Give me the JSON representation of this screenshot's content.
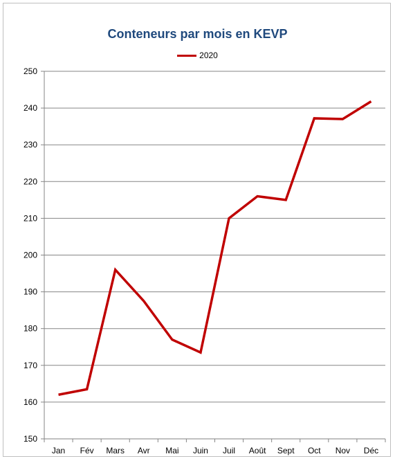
{
  "chart_data": {
    "type": "line",
    "title": "Conteneurs par mois en KEVP",
    "categories": [
      "Jan",
      "Fév",
      "Mars",
      "Avr",
      "Mai",
      "Juin",
      "Juil",
      "Août",
      "Sept",
      "Oct",
      "Nov",
      "Déc"
    ],
    "series": [
      {
        "name": "2020",
        "color": "#c00000",
        "values": [
          162,
          163.5,
          196,
          187.5,
          177,
          173.5,
          210,
          216,
          215,
          237.2,
          237,
          241.8
        ]
      }
    ],
    "ylim": [
      150,
      250
    ],
    "yticks": [
      150,
      160,
      170,
      180,
      190,
      200,
      210,
      220,
      230,
      240,
      250
    ],
    "grid": true,
    "legend_position": "top"
  }
}
